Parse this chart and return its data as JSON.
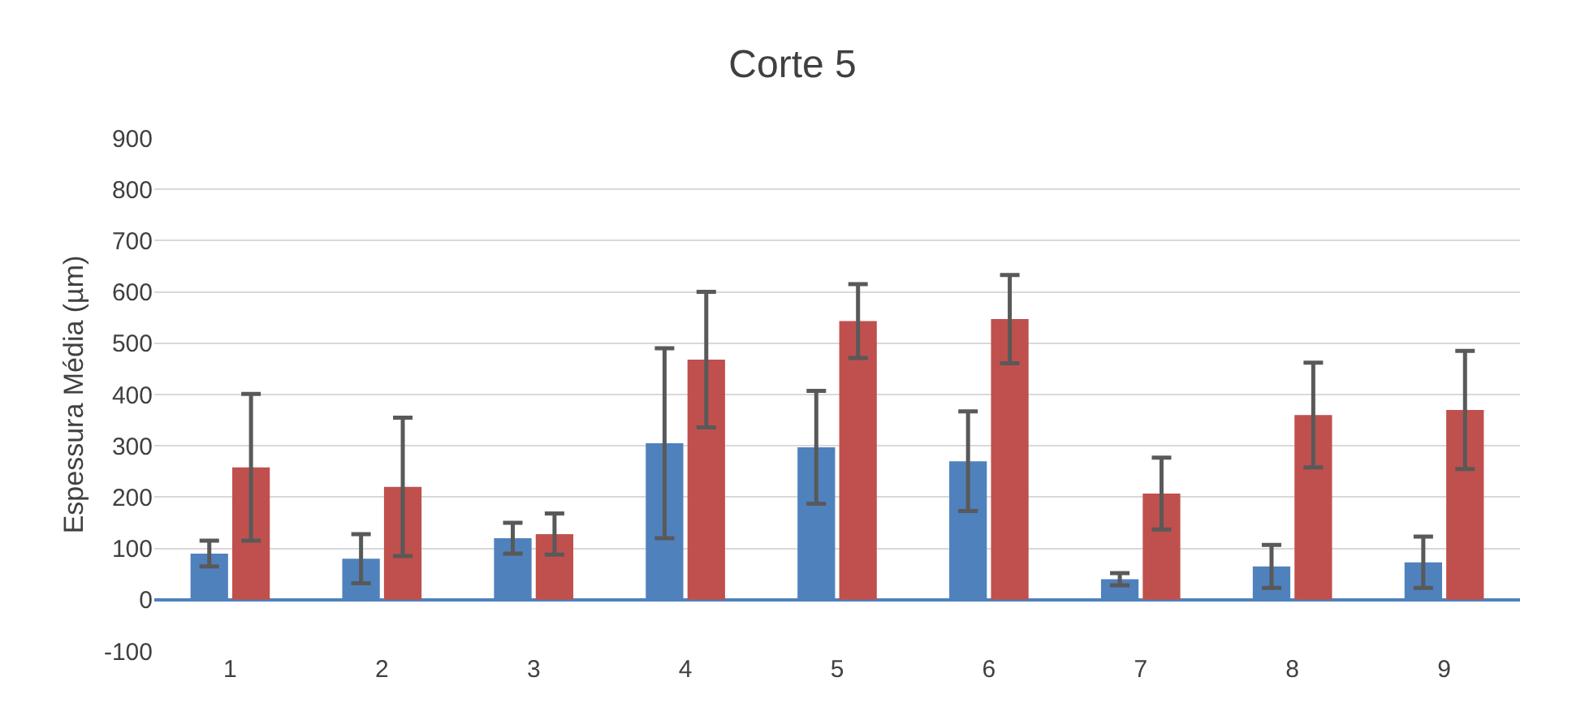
{
  "chart_data": {
    "type": "bar",
    "title": "Corte 5",
    "ylabel": "Espessura Média (µm)",
    "categories": [
      "1",
      "2",
      "3",
      "4",
      "5",
      "6",
      "7",
      "8",
      "9"
    ],
    "series": [
      {
        "color": "#4f81bd",
        "values": [
          90,
          80,
          120,
          305,
          297,
          270,
          40,
          65,
          73
        ],
        "errors": [
          25,
          48,
          30,
          185,
          110,
          97,
          12,
          42,
          50
        ]
      },
      {
        "color": "#c0504d",
        "values": [
          258,
          220,
          128,
          468,
          543,
          547,
          207,
          360,
          370
        ],
        "errors": [
          143,
          135,
          40,
          132,
          72,
          86,
          70,
          102,
          115
        ]
      }
    ],
    "ylim": [
      -100,
      900
    ],
    "yticks": [
      -100,
      0,
      100,
      200,
      300,
      400,
      500,
      600,
      700,
      800,
      900
    ],
    "grid": "y"
  }
}
